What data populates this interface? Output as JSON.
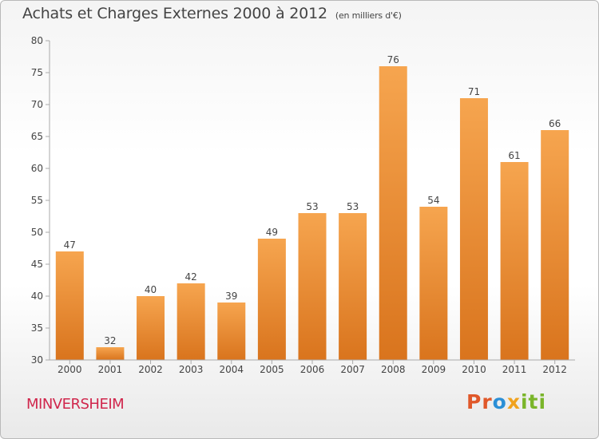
{
  "header": {
    "title": "Achats et Charges Externes 2000 à 2012",
    "unit": "(en milliers d'€)"
  },
  "footer": {
    "commune": "MINVERSHEIM",
    "logo_text": "Proxiti"
  },
  "colors": {
    "bar_top": "#f6a54f",
    "bar_bottom": "#d9741d",
    "commune": "#d0264c"
  },
  "chart_data": {
    "type": "bar",
    "title": "Achats et Charges Externes 2000 à 2012",
    "subtitle": "(en milliers d'€)",
    "xlabel": "",
    "ylabel": "",
    "categories": [
      "2000",
      "2001",
      "2002",
      "2003",
      "2004",
      "2005",
      "2006",
      "2007",
      "2008",
      "2009",
      "2010",
      "2011",
      "2012"
    ],
    "values": [
      47,
      32,
      40,
      42,
      39,
      49,
      53,
      53,
      76,
      54,
      71,
      61,
      66
    ],
    "data_labels": [
      "47",
      "32",
      "40",
      "42",
      "39",
      "49",
      "53",
      "53",
      "76",
      "54",
      "71",
      "61",
      "66"
    ],
    "ylim": [
      30,
      80
    ],
    "yticks": [
      30,
      35,
      40,
      45,
      50,
      55,
      60,
      65,
      70,
      75,
      80
    ],
    "grid": false,
    "legend": "none"
  }
}
